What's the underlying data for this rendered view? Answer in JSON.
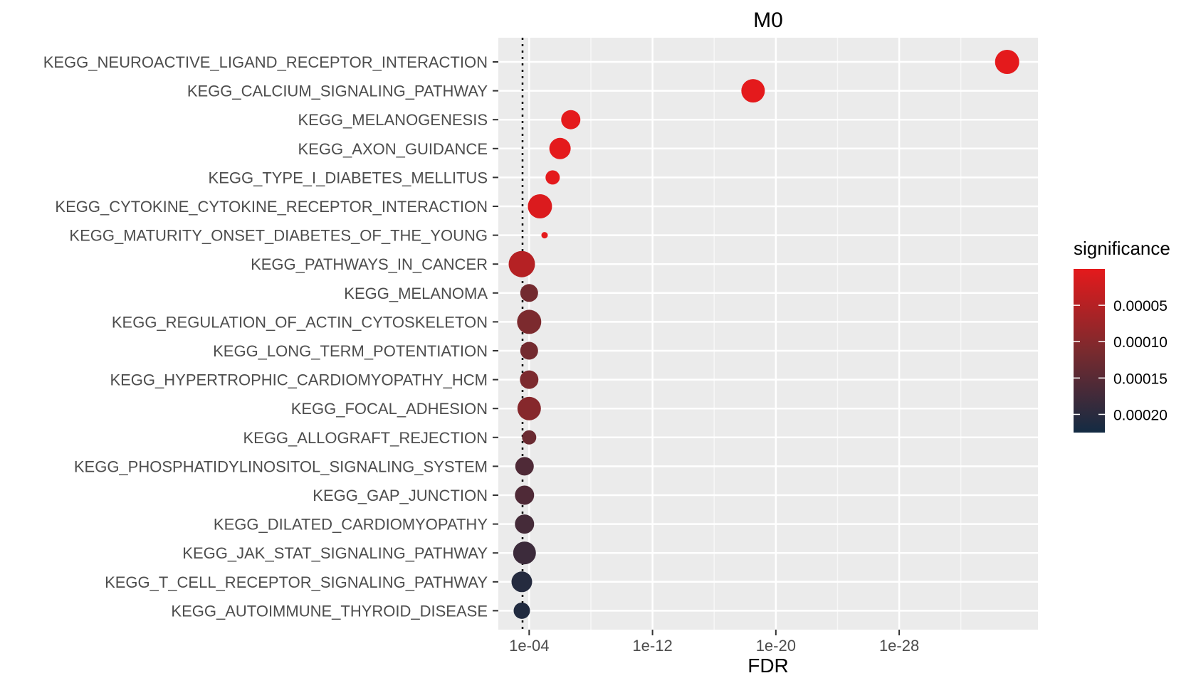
{
  "chart_data": {
    "type": "scatter",
    "title": "M0",
    "xlabel": "FDR",
    "ylabel": "",
    "x_scale": "reverse-log10",
    "xlim": [
      0.01,
      1e-37
    ],
    "x_ticks": [
      {
        "value": 0.0001,
        "label": "1e-04"
      },
      {
        "value": 1e-12,
        "label": "1e-12"
      },
      {
        "value": 1e-20,
        "label": "1e-20"
      },
      {
        "value": 1e-28,
        "label": "1e-28"
      }
    ],
    "reference_line": {
      "fdr": 0.01,
      "style": "dotted"
    },
    "categories": [
      "KEGG_NEUROACTIVE_LIGAND_RECEPTOR_INTERACTION",
      "KEGG_CALCIUM_SIGNALING_PATHWAY",
      "KEGG_MELANOGENESIS",
      "KEGG_AXON_GUIDANCE",
      "KEGG_TYPE_I_DIABETES_MELLITUS",
      "KEGG_CYTOKINE_CYTOKINE_RECEPTOR_INTERACTION",
      "KEGG_MATURITY_ONSET_DIABETES_OF_THE_YOUNG",
      "KEGG_PATHWAYS_IN_CANCER",
      "KEGG_MELANOMA",
      "KEGG_REGULATION_OF_ACTIN_CYTOSKELETON",
      "KEGG_LONG_TERM_POTENTIATION",
      "KEGG_HYPERTROPHIC_CARDIOMYOPATHY_HCM",
      "KEGG_FOCAL_ADHESION",
      "KEGG_ALLOGRAFT_REJECTION",
      "KEGG_PHOSPHATIDYLINOSITOL_SIGNALING_SYSTEM",
      "KEGG_GAP_JUNCTION",
      "KEGG_DILATED_CARDIOMYOPATHY",
      "KEGG_JAK_STAT_SIGNALING_PATHWAY",
      "KEGG_T_CELL_RECEPTOR_SIGNALING_PATHWAY",
      "KEGG_AUTOIMMUNE_THYROID_DISEASE"
    ],
    "fdr": [
      1e-35,
      3e-19,
      2e-07,
      1e-06,
      3e-06,
      2e-05,
      1e-05,
      0.0003,
      0.0001,
      0.0001,
      0.0001,
      0.0001,
      0.0001,
      0.0001,
      0.0002,
      0.0002,
      0.0002,
      0.0002,
      0.0003,
      0.0003
    ],
    "significance": [
      0.0,
      0.0,
      0.0,
      0.0,
      0.0,
      1e-05,
      0.0,
      5e-05,
      0.00012,
      0.00011,
      0.00012,
      0.00011,
      0.0001,
      0.00013,
      0.00016,
      0.00016,
      0.00017,
      0.00018,
      0.000205,
      0.00021
    ],
    "size": [
      34,
      33,
      27,
      30,
      20,
      34,
      9,
      37,
      25,
      34,
      25,
      26,
      33,
      20,
      26,
      27,
      27,
      32,
      29,
      23
    ],
    "legend": {
      "title": "significance",
      "placement": "right",
      "range": [
        0.000225,
        0.0
      ],
      "ticks": [
        {
          "value": 5e-05,
          "label": "0.00005"
        },
        {
          "value": 0.0001,
          "label": "0.00010"
        },
        {
          "value": 0.00015,
          "label": "0.00015"
        },
        {
          "value": 0.0002,
          "label": "0.00020"
        }
      ],
      "low_color": "#e41a1c",
      "mid_color": "#7a2a2e",
      "high_color": "#132b43"
    },
    "grid": true,
    "panel_color": "#ebebeb"
  }
}
